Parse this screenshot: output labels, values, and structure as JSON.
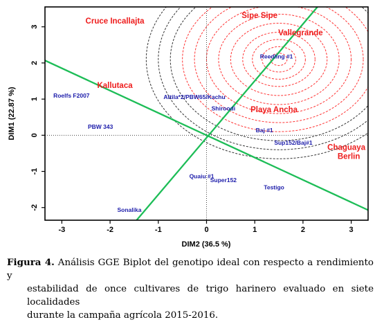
{
  "chart_data": {
    "type": "scatter",
    "xlabel": "DIM2 (36.5 %)",
    "ylabel": "DIM1 (22.87 %)",
    "xlim": [
      -3.35,
      3.35
    ],
    "ylim": [
      -2.35,
      3.55
    ],
    "xticks": [
      -3,
      -2,
      -1,
      0,
      1,
      2,
      3
    ],
    "yticks": [
      -2,
      -1,
      0,
      1,
      2,
      3
    ],
    "ideal_point": {
      "label": "Reedling #1",
      "x": 1.5,
      "y": 2.1
    },
    "circle_radii": [
      0.17,
      0.35,
      0.55,
      0.75,
      1.0,
      1.25,
      1.5,
      1.75,
      2.0,
      2.25,
      2.5,
      2.75
    ],
    "axis_line_1": {
      "x1": -3.4,
      "y1": 2.1,
      "x2": 3.4,
      "y2": -2.1
    },
    "axis_line_2": {
      "x1": -1.45,
      "y1": -2.35,
      "x2": 2.3,
      "y2": 3.55
    },
    "genotypes": [
      {
        "label": "Reedling #1",
        "x": 1.45,
        "y": 2.17
      },
      {
        "label": "Roelfs F2007",
        "x": -2.8,
        "y": 1.08
      },
      {
        "label": "Attila*2/PBW65/Kachu",
        "x": -0.25,
        "y": 1.05
      },
      {
        "label": "Shiroodi",
        "x": 0.35,
        "y": 0.73
      },
      {
        "label": "PBW 343",
        "x": -2.2,
        "y": 0.22
      },
      {
        "label": "Baj #1",
        "x": 1.2,
        "y": 0.13
      },
      {
        "label": "Sup152/Baj#1",
        "x": 1.8,
        "y": -0.22
      },
      {
        "label": "Quaiu #1",
        "x": -0.1,
        "y": -1.15
      },
      {
        "label": "Super152",
        "x": 0.35,
        "y": -1.25
      },
      {
        "label": "Testigo",
        "x": 1.4,
        "y": -1.45
      },
      {
        "label": "Sonalika",
        "x": -1.6,
        "y": -2.08
      }
    ],
    "environments": [
      {
        "label": "Cruce Incallajta",
        "x": -1.9,
        "y": 3.15
      },
      {
        "label": "Sipe Sipe",
        "x": 1.1,
        "y": 3.3
      },
      {
        "label": "Vallegrande",
        "x": 1.95,
        "y": 2.82
      },
      {
        "label": "Kallutaca",
        "x": -1.9,
        "y": 1.37
      },
      {
        "label": "Playa Ancha",
        "x": 1.4,
        "y": 0.7
      },
      {
        "label": "Chaguaya",
        "x": 2.9,
        "y": -0.35
      },
      {
        "label": "Berlin",
        "x": 2.95,
        "y": -0.6
      }
    ],
    "colors": {
      "genotype": "#1c1caa",
      "environment": "#ee1c1c",
      "circle_inner": "#ff3333",
      "circle_outer": "#333333",
      "axis_lines": "#1dbd57"
    }
  },
  "caption": {
    "figure_label": "Figura 4.",
    "line1": "Análisis GGE Biplot del genotipo ideal con respecto a rendimiento y",
    "line2": "estabilidad de once cultivares de trigo harinero evaluado en siete localidades",
    "line3": "durante la campaña agrícola 2015-2016."
  }
}
